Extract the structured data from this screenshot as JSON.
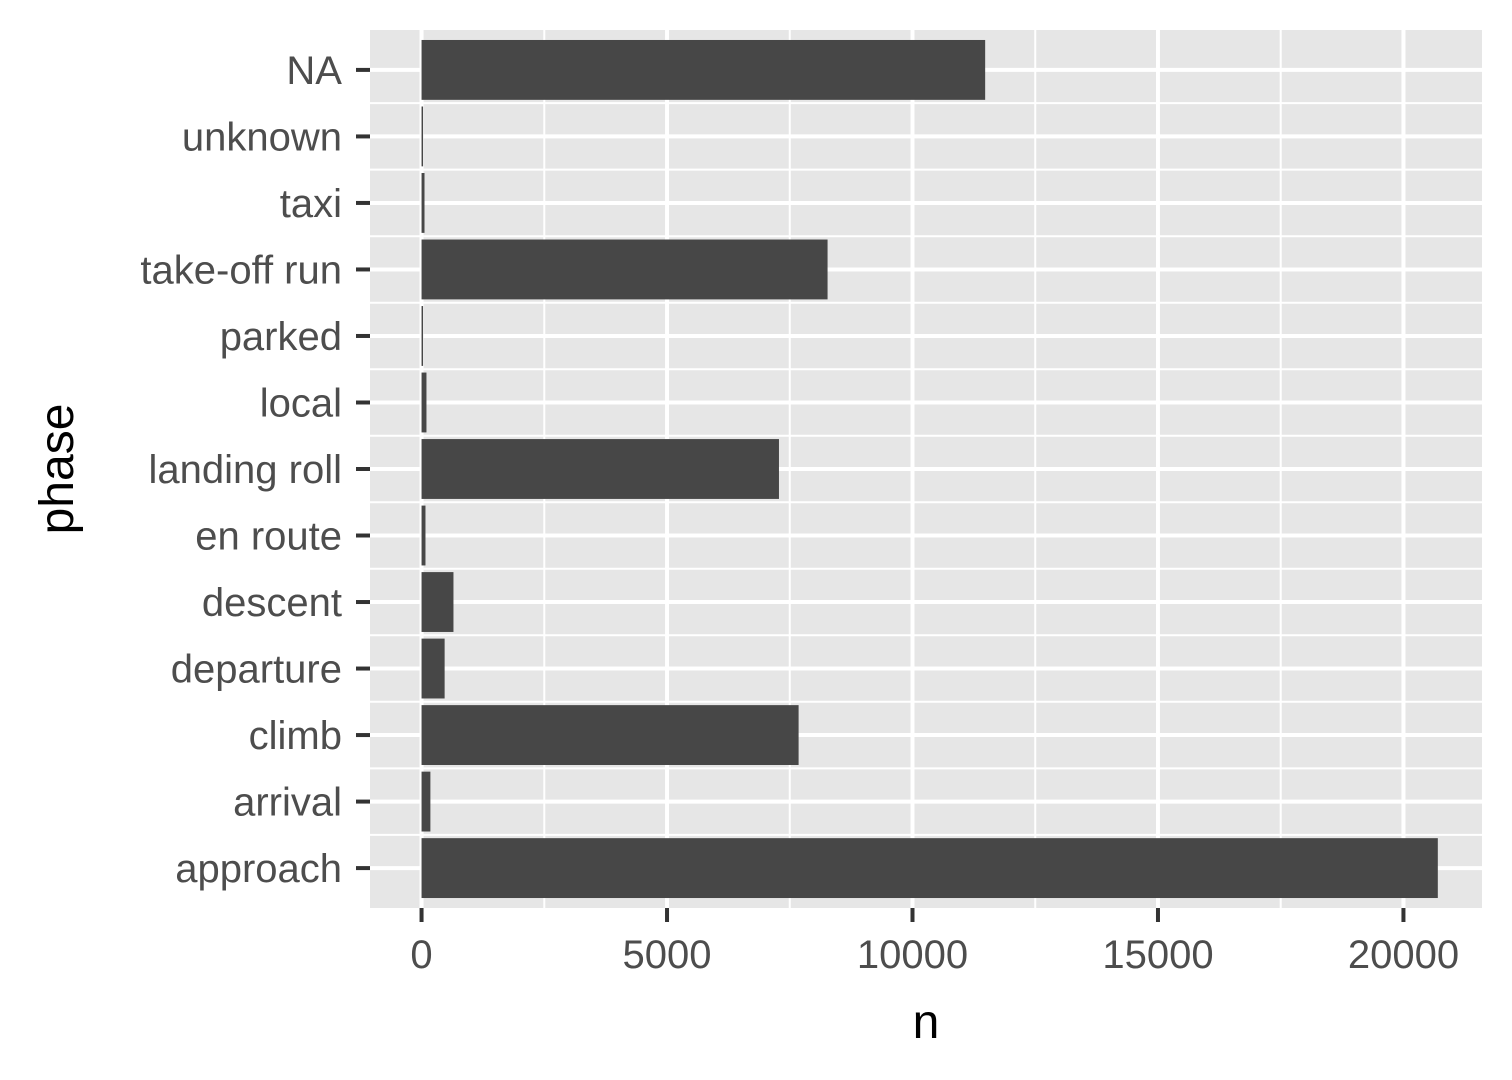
{
  "chart_data": {
    "type": "bar",
    "orientation": "horizontal",
    "title": "",
    "xlabel": "n",
    "ylabel": "phase",
    "categories": [
      "approach",
      "arrival",
      "climb",
      "departure",
      "descent",
      "en route",
      "landing roll",
      "local",
      "parked",
      "take-off run",
      "taxi",
      "unknown",
      "NA"
    ],
    "values": [
      20700,
      180,
      7680,
      470,
      650,
      80,
      7280,
      100,
      20,
      8270,
      60,
      30,
      11480
    ],
    "xlim": [
      -1050,
      21600
    ],
    "x_ticks": [
      0,
      5000,
      10000,
      15000,
      20000
    ],
    "x_minor_ticks": [
      2500,
      7500,
      12500,
      17500
    ],
    "grid": true,
    "legend": "none",
    "colors": {
      "bar": "#474747",
      "panel": "#e6e6e6",
      "grid": "#ffffff",
      "tick_text": "#4d4d4d",
      "tick_mark": "#333333"
    }
  }
}
